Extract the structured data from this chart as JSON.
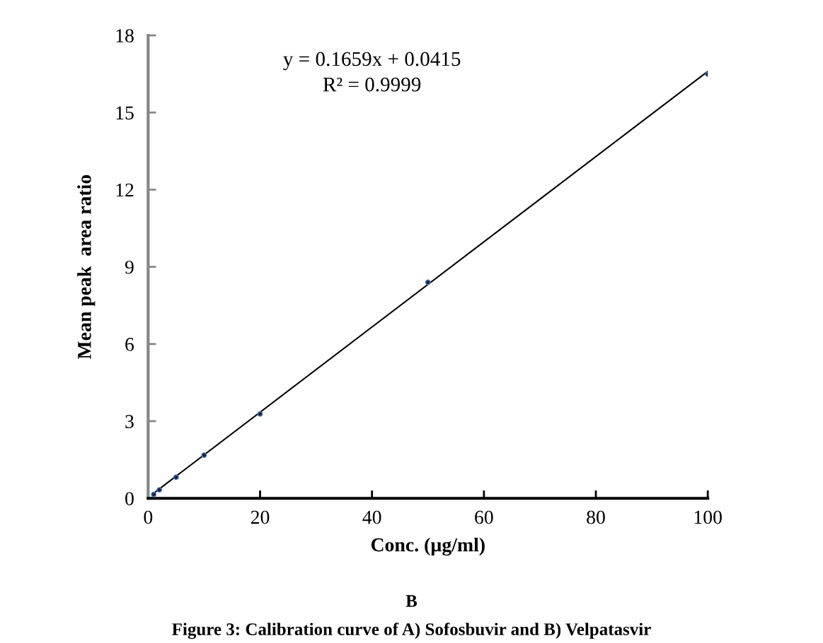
{
  "chart_data": {
    "type": "scatter",
    "xlabel": "Conc. (µg/ml)",
    "ylabel": "Mean peak  area ratio",
    "series": [
      {
        "color": "#1f1f3f",
        "x": [
          1,
          2,
          5,
          10,
          20,
          50,
          100
        ],
        "values": [
          0.15,
          0.33,
          0.82,
          1.68,
          3.28,
          8.4,
          16.49
        ]
      },
      {
        "type": "line",
        "color": "#000000",
        "x": [
          1,
          100
        ],
        "values": [
          0.2,
          16.6
        ]
      }
    ],
    "xlim": [
      0,
      100
    ],
    "xticks": [
      0,
      20,
      40,
      60,
      80,
      100
    ],
    "ylim": [
      0,
      18
    ],
    "yticks": [
      0,
      3,
      6,
      9,
      12,
      15,
      18
    ],
    "grid": false,
    "legend": false,
    "annotations": [
      "y = 0.1659x + 0.0415",
      "R² = 0.9999",
      "B",
      "Figure 3: Calibration curve of A) Sofosbuvir and B) Velpatasvir"
    ]
  }
}
